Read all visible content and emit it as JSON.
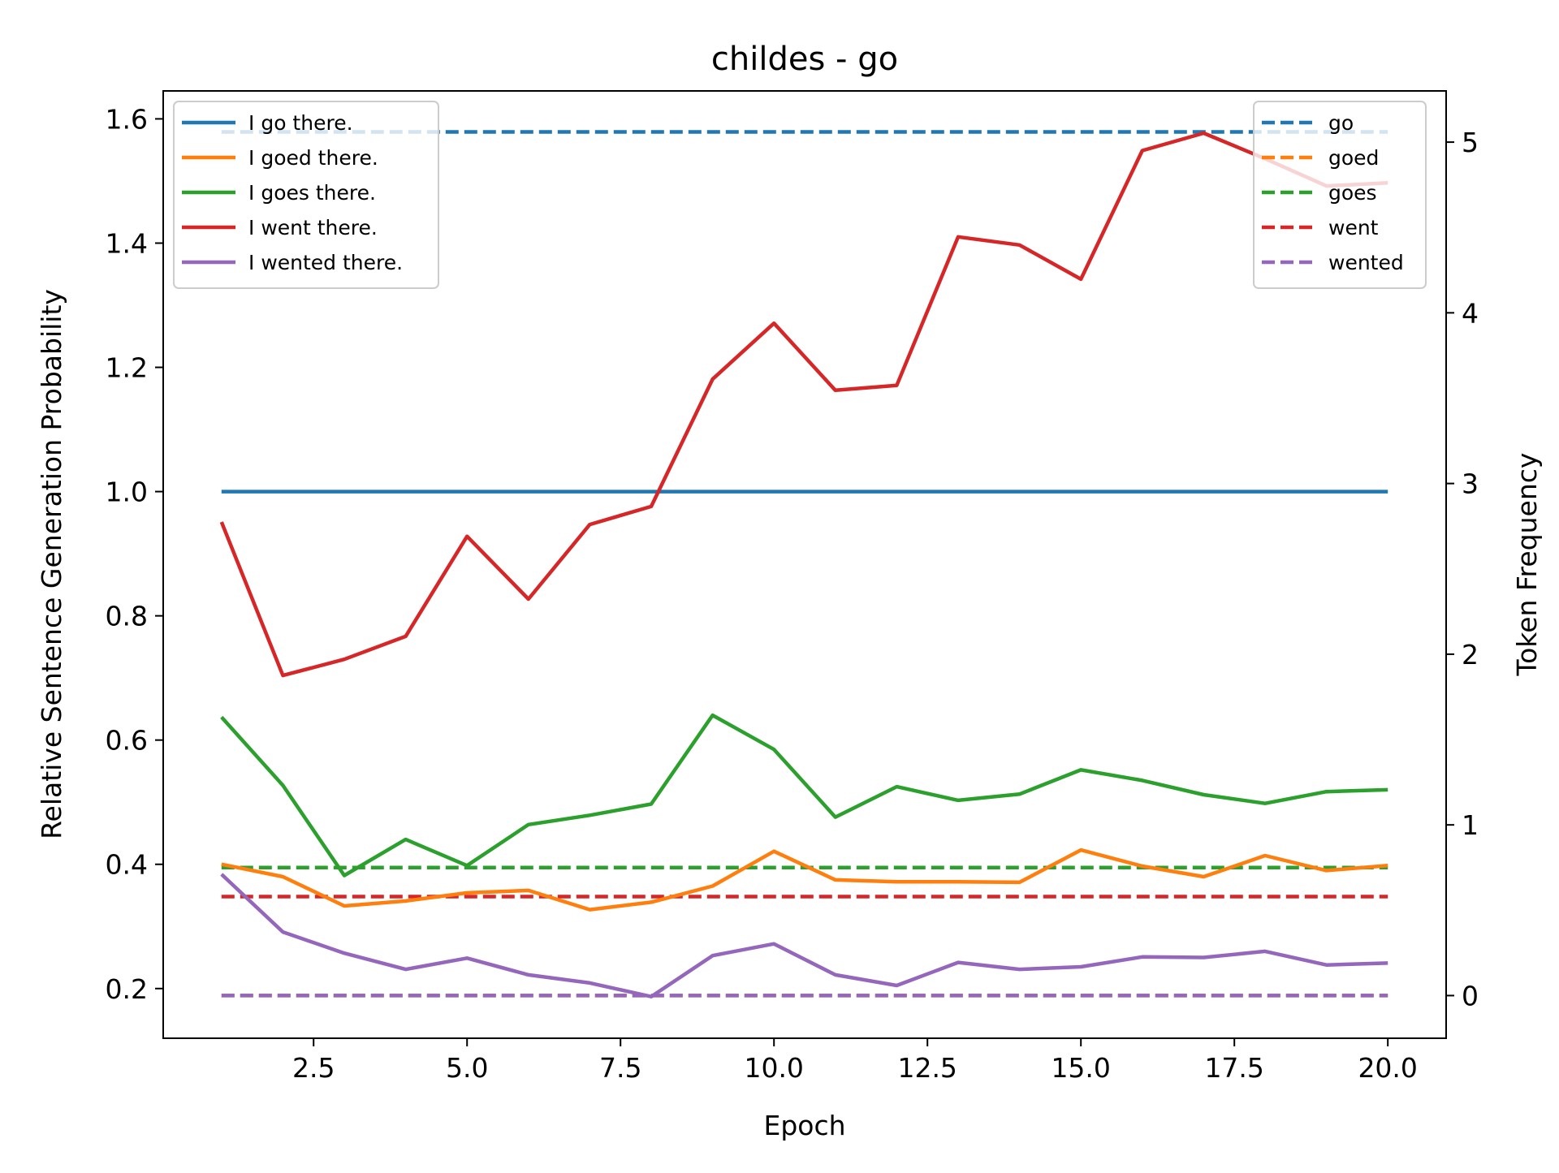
{
  "chart_data": {
    "type": "line",
    "title": "childes - go",
    "xlabel": "Epoch",
    "ylabel": "Relative Sentence Generation Probability",
    "y2label": "Token Frequency",
    "xlim": [
      0.05,
      20.95
    ],
    "ylim": [
      0.12,
      1.645
    ],
    "y2lim": [
      -0.25,
      5.3
    ],
    "grid": false,
    "x": [
      1,
      2,
      3,
      4,
      5,
      6,
      7,
      8,
      9,
      10,
      11,
      12,
      13,
      14,
      15,
      16,
      17,
      18,
      19,
      20
    ],
    "x_ticks": [
      {
        "value": 2.5,
        "label": "2.5"
      },
      {
        "value": 5.0,
        "label": "5.0"
      },
      {
        "value": 7.5,
        "label": "7.5"
      },
      {
        "value": 10.0,
        "label": "10.0"
      },
      {
        "value": 12.5,
        "label": "12.5"
      },
      {
        "value": 15.0,
        "label": "15.0"
      },
      {
        "value": 17.5,
        "label": "17.5"
      },
      {
        "value": 20.0,
        "label": "20.0"
      }
    ],
    "y_ticks": [
      {
        "value": 0.2,
        "label": "0.2"
      },
      {
        "value": 0.4,
        "label": "0.4"
      },
      {
        "value": 0.6,
        "label": "0.6"
      },
      {
        "value": 0.8,
        "label": "0.8"
      },
      {
        "value": 1.0,
        "label": "1.0"
      },
      {
        "value": 1.2,
        "label": "1.2"
      },
      {
        "value": 1.4,
        "label": "1.4"
      },
      {
        "value": 1.6,
        "label": "1.6"
      }
    ],
    "y2_ticks": [
      {
        "value": 0,
        "label": "0"
      },
      {
        "value": 1,
        "label": "1"
      },
      {
        "value": 2,
        "label": "2"
      },
      {
        "value": 3,
        "label": "3"
      },
      {
        "value": 4,
        "label": "4"
      },
      {
        "value": 5,
        "label": "5"
      }
    ],
    "series": [
      {
        "name": "I go there.",
        "color": "#1f77b4",
        "axis": "left",
        "values": [
          1,
          1,
          1,
          1,
          1,
          1,
          1,
          1,
          1,
          1,
          1,
          1,
          1,
          1,
          1,
          1,
          1,
          1,
          1,
          1
        ]
      },
      {
        "name": "I goed there.",
        "color": "#ff7f0e",
        "axis": "left",
        "values": [
          0.4,
          0.38,
          0.333,
          0.341,
          0.354,
          0.358,
          0.327,
          0.339,
          0.365,
          0.421,
          0.375,
          0.372,
          0.372,
          0.371,
          0.423,
          0.397,
          0.38,
          0.414,
          0.39,
          0.398
        ]
      },
      {
        "name": "I goes there.",
        "color": "#2ca02c",
        "axis": "left",
        "values": [
          0.637,
          0.527,
          0.382,
          0.44,
          0.398,
          0.464,
          0.479,
          0.497,
          0.64,
          0.585,
          0.476,
          0.525,
          0.503,
          0.513,
          0.552,
          0.535,
          0.512,
          0.498,
          0.517,
          0.52
        ]
      },
      {
        "name": "I went there.",
        "color": "#d62728",
        "axis": "left",
        "values": [
          0.951,
          0.704,
          0.73,
          0.767,
          0.928,
          0.827,
          0.947,
          0.976,
          1.181,
          1.271,
          1.163,
          1.171,
          1.41,
          1.397,
          1.342,
          1.549,
          1.577,
          1.536,
          1.492,
          1.497
        ]
      },
      {
        "name": "I wented there.",
        "color": "#9467bd",
        "axis": "left",
        "values": [
          0.384,
          0.291,
          0.257,
          0.231,
          0.249,
          0.222,
          0.209,
          0.187,
          0.253,
          0.272,
          0.222,
          0.205,
          0.242,
          0.231,
          0.235,
          0.251,
          0.25,
          0.26,
          0.238,
          0.241
        ]
      },
      {
        "name": "go",
        "color": "#1f77b4",
        "axis": "right",
        "dashed": true,
        "values": [
          5.06,
          5.06,
          5.06,
          5.06,
          5.06,
          5.06,
          5.06,
          5.06,
          5.06,
          5.06,
          5.06,
          5.06,
          5.06,
          5.06,
          5.06,
          5.06,
          5.06,
          5.06,
          5.06,
          5.06
        ]
      },
      {
        "name": "goed",
        "color": "#ff7f0e",
        "axis": "right",
        "dashed": true,
        "values": [
          0,
          0,
          0,
          0,
          0,
          0,
          0,
          0,
          0,
          0,
          0,
          0,
          0,
          0,
          0,
          0,
          0,
          0,
          0,
          0
        ]
      },
      {
        "name": "goes",
        "color": "#2ca02c",
        "axis": "right",
        "dashed": true,
        "values": [
          0.75,
          0.75,
          0.75,
          0.75,
          0.75,
          0.75,
          0.75,
          0.75,
          0.75,
          0.75,
          0.75,
          0.75,
          0.75,
          0.75,
          0.75,
          0.75,
          0.75,
          0.75,
          0.75,
          0.75
        ]
      },
      {
        "name": "went",
        "color": "#d62728",
        "axis": "right",
        "dashed": true,
        "values": [
          0.58,
          0.58,
          0.58,
          0.58,
          0.58,
          0.58,
          0.58,
          0.58,
          0.58,
          0.58,
          0.58,
          0.58,
          0.58,
          0.58,
          0.58,
          0.58,
          0.58,
          0.58,
          0.58,
          0.58
        ]
      },
      {
        "name": "wented",
        "color": "#9467bd",
        "axis": "right",
        "dashed": true,
        "values": [
          0,
          0,
          0,
          0,
          0,
          0,
          0,
          0,
          0,
          0,
          0,
          0,
          0,
          0,
          0,
          0,
          0,
          0,
          0,
          0
        ]
      }
    ],
    "legends": [
      {
        "position": "upper-left",
        "entries": [
          "I go there.",
          "I goed there.",
          "I goes there.",
          "I went there.",
          "I wented there."
        ]
      },
      {
        "position": "upper-right",
        "entries": [
          "go",
          "goed",
          "goes",
          "went",
          "wented"
        ]
      }
    ]
  }
}
